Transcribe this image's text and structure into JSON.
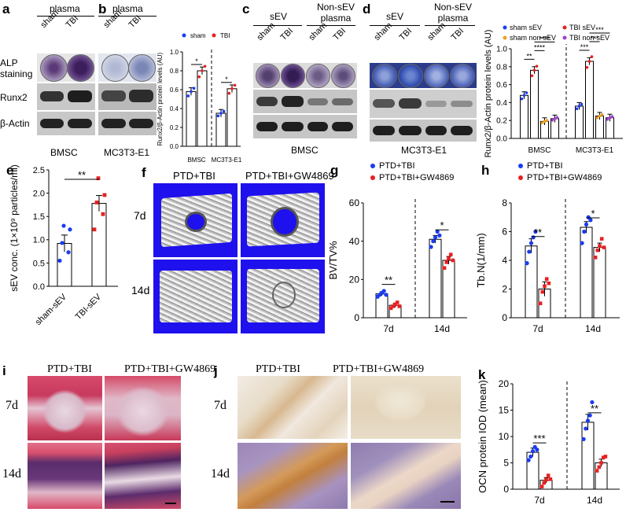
{
  "panels": {
    "a": {
      "letter": "a",
      "header": "plasma",
      "rows": [
        "ALP staining",
        "Runx2",
        "β-Actin"
      ],
      "lanes": [
        "sham",
        "TBI"
      ],
      "caption": "BMSC"
    },
    "b": {
      "letter": "b",
      "header": "plasma",
      "lanes": [
        "sham",
        "TBI"
      ],
      "caption": "MC3T3-E1"
    },
    "c": {
      "letter": "c",
      "header_left": "sEV",
      "header_right": "Non-sEV plasma",
      "lanes": [
        "sham",
        "TBI",
        "sham",
        "TBI"
      ],
      "caption": "BMSC"
    },
    "d": {
      "letter": "d",
      "header_left": "sEV",
      "header_right": "Non-sEV plasma",
      "lanes": [
        "sham",
        "TBI",
        "sham",
        "TBI"
      ],
      "caption": "MC3T3-E1"
    },
    "f": {
      "letter": "f",
      "columns": [
        "PTD+TBI",
        "PTD+TBI+GW4869"
      ],
      "rows": [
        "7d",
        "14d"
      ]
    },
    "i": {
      "letter": "i",
      "columns": [
        "PTD+TBI",
        "PTD+TBI+GW4869"
      ],
      "rows": [
        "7d",
        "14d"
      ]
    },
    "j": {
      "letter": "j",
      "columns": [
        "PTD+TBI",
        "PTD+TBI+GW4869"
      ],
      "rows": [
        "7d",
        "14d"
      ]
    }
  },
  "colors": {
    "ct_background": "#1f10ee",
    "blue_dot": "#1a3cf0",
    "red_dot": "#e82020",
    "orange_dot": "#f0a020",
    "purple_dot": "#a040d0"
  },
  "chart_data": [
    {
      "id": "ab-chart",
      "letter": "",
      "type": "bar",
      "ylabel": "Runx2/β-Actin protein levels (AU)",
      "ylim": [
        0,
        1.0
      ],
      "yticks": [
        0.0,
        0.2,
        0.4,
        0.6,
        0.8,
        1.0
      ],
      "groups": [
        "BMSC",
        "MC3T3-E1"
      ],
      "series": [
        {
          "name": "sham",
          "color": "#1a3cf0",
          "values": [
            0.58,
            0.35
          ]
        },
        {
          "name": "TBI",
          "color": "#e82020",
          "values": [
            0.8,
            0.61
          ]
        }
      ],
      "significance": [
        "*",
        "*"
      ]
    },
    {
      "id": "d-chart",
      "letter": "",
      "type": "bar",
      "ylabel": "Runx2/β-Actin protein levels (AU)",
      "ylim": [
        0,
        1.0
      ],
      "yticks": [
        0.0,
        0.2,
        0.4,
        0.6,
        0.8,
        1.0
      ],
      "groups": [
        "BMSC",
        "MC3T3-E1"
      ],
      "series": [
        {
          "name": "sham sEV",
          "color": "#1a3cf0",
          "values": [
            0.48,
            0.36
          ]
        },
        {
          "name": "TBI sEV",
          "color": "#e82020",
          "values": [
            0.76,
            0.86
          ]
        },
        {
          "name": "sham non-sEV",
          "color": "#f0a020",
          "values": [
            0.19,
            0.25
          ]
        },
        {
          "name": "TBI non-sEV",
          "color": "#a040d0",
          "values": [
            0.22,
            0.23
          ]
        }
      ],
      "significance": [
        [
          "**",
          "****",
          "****"
        ],
        [
          "***",
          "***",
          "***"
        ]
      ]
    },
    {
      "id": "e",
      "letter": "e",
      "type": "scatter",
      "ylabel": "sEV conc. (1×10⁹ particles/ml)",
      "ylim": [
        0,
        2.5
      ],
      "yticks": [
        0.0,
        0.5,
        1.0,
        1.5,
        2.0,
        2.5
      ],
      "categories": [
        "sham-sEV",
        "TBI-sEV"
      ],
      "series": [
        {
          "name": "sham-sEV",
          "color": "#1a3cf0",
          "mean": 0.92,
          "sem": 0.18,
          "points": [
            0.55,
            0.73,
            0.93,
            1.22,
            1.3
          ]
        },
        {
          "name": "TBI-sEV",
          "color": "#e82020",
          "mean": 1.78,
          "sem": 0.17,
          "points": [
            1.22,
            1.55,
            1.8,
            1.96,
            2.32
          ]
        }
      ],
      "significance": [
        "**"
      ]
    },
    {
      "id": "g",
      "letter": "g",
      "type": "bar",
      "ylabel": "BV/TV%",
      "ylim": [
        0,
        60
      ],
      "yticks": [
        0,
        20,
        40,
        60
      ],
      "groups": [
        "7d",
        "14d"
      ],
      "series": [
        {
          "name": "PTD+TBI",
          "color": "#1a3cf0",
          "values": [
            12.5,
            41
          ],
          "sem": [
            1,
            2
          ],
          "points": [
            [
              11,
              12,
              13,
              14,
              12
            ],
            [
              37,
              40,
              42,
              45,
              43
            ]
          ]
        },
        {
          "name": "PTD+TBI+GW4869",
          "color": "#e82020",
          "values": [
            6.5,
            30
          ],
          "sem": [
            1,
            2
          ],
          "points": [
            [
              5,
              6,
              7,
              8,
              6
            ],
            [
              26,
              29,
              31,
              33,
              30
            ]
          ]
        }
      ],
      "significance": [
        "**",
        "*"
      ]
    },
    {
      "id": "h",
      "letter": "h",
      "type": "bar",
      "ylabel": "Tb.N(1/mm)",
      "ylim": [
        0,
        8
      ],
      "yticks": [
        0,
        2,
        4,
        6,
        8
      ],
      "groups": [
        "7d",
        "14d"
      ],
      "series": [
        {
          "name": "PTD+TBI",
          "color": "#1a3cf0",
          "values": [
            5.0,
            6.3
          ],
          "sem": [
            0.5,
            0.4
          ],
          "points": [
            [
              3.8,
              4.6,
              5.2,
              5.6,
              6.0
            ],
            [
              5.2,
              6.0,
              6.5,
              7.0,
              6.8
            ]
          ]
        },
        {
          "name": "PTD+TBI+GW4869",
          "color": "#e82020",
          "values": [
            2.0,
            4.9
          ],
          "sem": [
            0.5,
            0.3
          ],
          "points": [
            [
              1.0,
              1.8,
              2.2,
              2.7,
              2.4
            ],
            [
              4.2,
              4.7,
              5.0,
              5.5,
              4.9
            ]
          ]
        }
      ],
      "significance": [
        "**",
        "*"
      ]
    },
    {
      "id": "k",
      "letter": "k",
      "type": "bar",
      "ylabel": "OCN protein IOD (mean)",
      "ylim": [
        0,
        20
      ],
      "yticks": [
        0,
        5,
        10,
        15,
        20
      ],
      "groups": [
        "7d",
        "14d"
      ],
      "series": [
        {
          "name": "PTD+TBI",
          "color": "#1a3cf0",
          "values": [
            7.0,
            12.7
          ],
          "sem": [
            0.8,
            1.5
          ],
          "points": [
            [
              5.5,
              6.2,
              7.2,
              8.0,
              7.5
            ],
            [
              9.5,
              11.5,
              13.0,
              14.0,
              16.5
            ]
          ]
        },
        {
          "name": "PTD+TBI+GW4869",
          "color": "#e82020",
          "values": [
            1.7,
            5.0
          ],
          "sem": [
            0.5,
            0.7
          ],
          "points": [
            [
              0.5,
              1.2,
              1.8,
              2.6,
              1.9
            ],
            [
              3.5,
              4.2,
              5.0,
              6.0,
              6.2
            ]
          ]
        }
      ],
      "significance": [
        "***",
        "**"
      ]
    }
  ]
}
